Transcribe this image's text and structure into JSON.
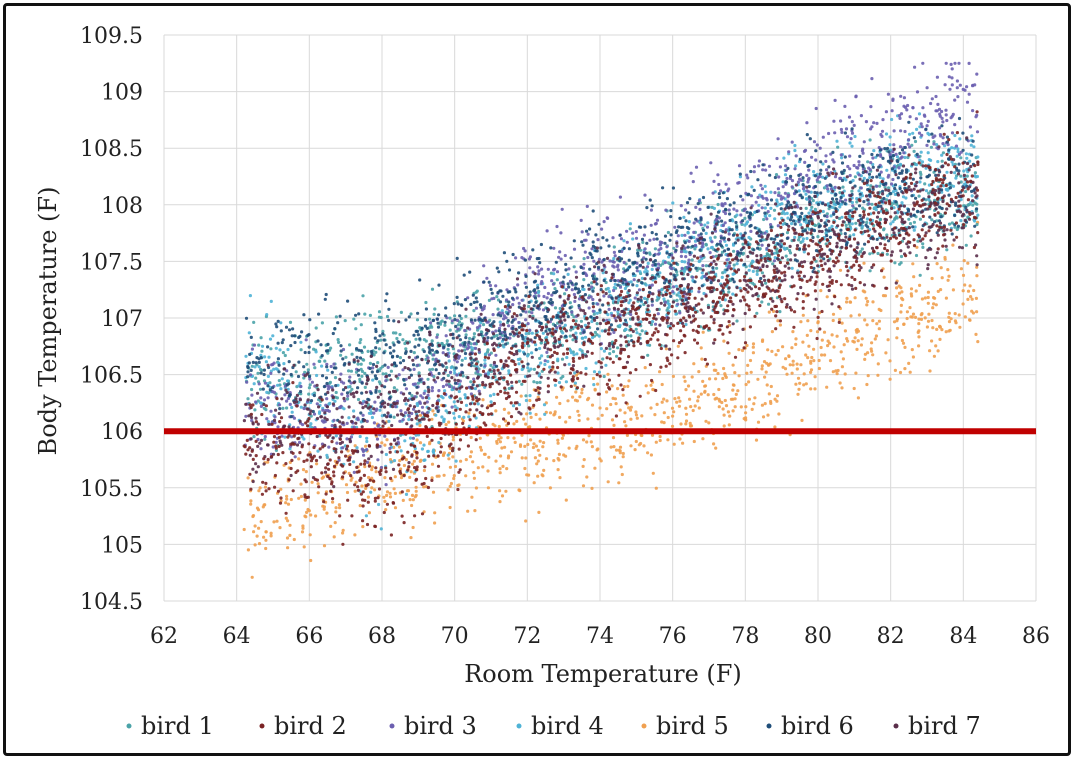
{
  "chart_data": {
    "type": "scatter",
    "title": "",
    "xlabel": "Room Temperature (F)",
    "ylabel": "Body Temperature (F)",
    "xlim": [
      62,
      86
    ],
    "ylim": [
      104.5,
      109.5
    ],
    "xticks": [
      "62",
      "64",
      "66",
      "68",
      "70",
      "72",
      "74",
      "76",
      "78",
      "80",
      "82",
      "84",
      "86"
    ],
    "yticks": [
      "104.5",
      "105",
      "105.5",
      "106",
      "106.5",
      "107",
      "107.5",
      "108",
      "108.5",
      "109",
      "109.5"
    ],
    "grid": true,
    "legend_position": "bottom",
    "reference_line": {
      "y": 106,
      "x_range": [
        62,
        86
      ],
      "color": "#c00000"
    },
    "series": [
      {
        "name": "bird 1",
        "color": "#4aa3a8",
        "trend": [
          [
            64.2,
            106.4
          ],
          [
            68,
            106.6
          ],
          [
            72,
            106.8
          ],
          [
            76,
            107.3
          ],
          [
            80,
            107.8
          ],
          [
            84,
            108.1
          ]
        ]
      },
      {
        "name": "bird 2",
        "color": "#7b2324",
        "trend": [
          [
            64.2,
            106.0
          ],
          [
            68,
            105.5
          ],
          [
            72,
            106.6
          ],
          [
            76,
            107.0
          ],
          [
            80,
            107.5
          ],
          [
            84,
            108.2
          ]
        ]
      },
      {
        "name": "bird 3",
        "color": "#6c5fb0",
        "trend": [
          [
            64.2,
            106.2
          ],
          [
            68,
            106.1
          ],
          [
            72,
            107.2
          ],
          [
            76,
            107.6
          ],
          [
            80,
            108.3
          ],
          [
            84,
            108.9
          ]
        ]
      },
      {
        "name": "bird 4",
        "color": "#4fb3d6",
        "trend": [
          [
            64.2,
            106.7
          ],
          [
            68,
            105.8
          ],
          [
            72,
            106.7
          ],
          [
            76,
            107.4
          ],
          [
            80,
            108.0
          ],
          [
            84,
            108.3
          ]
        ]
      },
      {
        "name": "bird 5",
        "color": "#f0a050",
        "trend": [
          [
            64.2,
            105.2
          ],
          [
            68,
            105.6
          ],
          [
            72,
            105.9
          ],
          [
            76,
            106.2
          ],
          [
            80,
            106.7
          ],
          [
            84,
            107.2
          ]
        ]
      },
      {
        "name": "bird 6",
        "color": "#1f4e79",
        "trend": [
          [
            64.2,
            106.6
          ],
          [
            68,
            106.6
          ],
          [
            72,
            107.1
          ],
          [
            76,
            107.6
          ],
          [
            80,
            108.0
          ],
          [
            84,
            108.2
          ]
        ]
      },
      {
        "name": "bird 7",
        "color": "#5a2e4a",
        "trend": [
          [
            64.2,
            106.0
          ],
          [
            68,
            106.2
          ],
          [
            72,
            106.8
          ],
          [
            76,
            107.2
          ],
          [
            80,
            107.7
          ],
          [
            84,
            108.0
          ]
        ]
      }
    ]
  }
}
